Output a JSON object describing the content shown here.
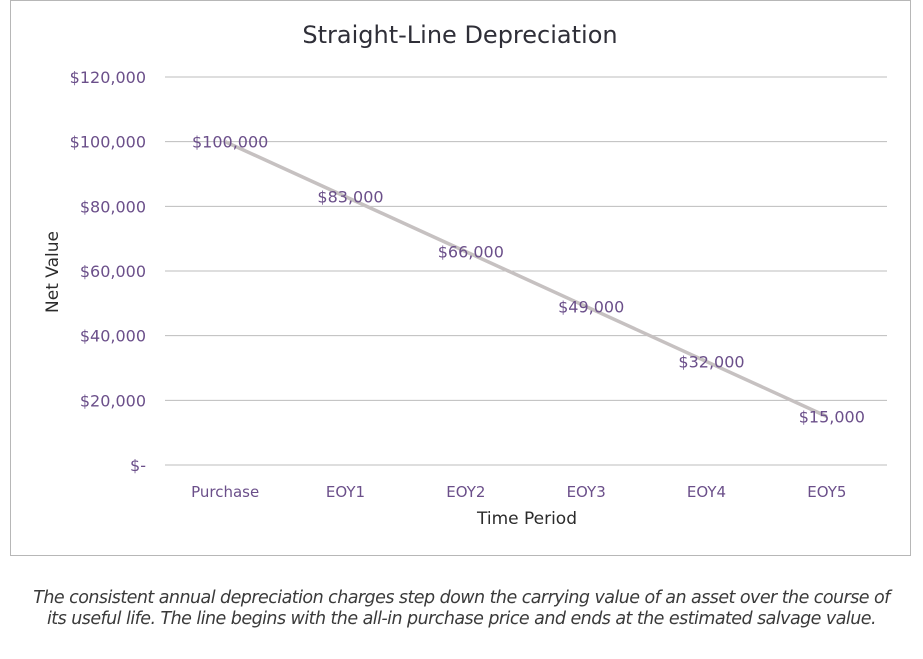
{
  "chart_data": {
    "type": "line",
    "title": "Straight-Line Depreciation",
    "xlabel": "Time Period",
    "ylabel": "Net Value",
    "categories": [
      "Purchase",
      "EOY1",
      "EOY2",
      "EOY3",
      "EOY4",
      "EOY5"
    ],
    "series": [
      {
        "values": [
          100000,
          83000,
          66000,
          49000,
          32000,
          15000
        ],
        "labels": [
          "$100,000",
          "$83,000",
          "$66,000",
          "$49,000",
          "$32,000",
          "$15,000"
        ]
      }
    ],
    "ylim": [
      0,
      120000
    ],
    "yticks": [
      0,
      20000,
      40000,
      60000,
      80000,
      100000,
      120000
    ],
    "ytick_labels": [
      "$-",
      "$20,000",
      "$40,000",
      "$60,000",
      "$80,000",
      "$100,000",
      "$120,000"
    ],
    "grid": true,
    "line_color": "#c6c1c1",
    "label_color": "#6b4f8a"
  },
  "caption": {
    "line1": "The consistent annual depreciation charges step down the carrying value of an asset over the course of",
    "line2": "its useful life. The line begins with the all-in purchase price and ends at the estimated salvage value."
  }
}
